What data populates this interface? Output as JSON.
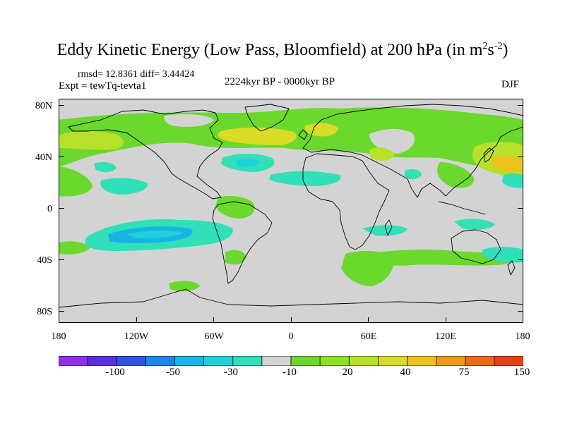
{
  "title": {
    "main": "Eddy Kinetic Energy (Low Pass, Bloomfield) at 200 hPa (in m",
    "sup1": "2",
    "mid": "s",
    "sup2": "-2",
    "end": ")"
  },
  "stats": "rmsd= 12.8361 diff= 3.44424",
  "experiment": "Expt = tewTq-tevta1",
  "period": "2224kyr BP - 0000kyr BP",
  "season": "DJF",
  "axes": {
    "lat_labels": [
      "80N",
      "40N",
      "0",
      "40S",
      "80S"
    ],
    "lat_values": [
      80,
      40,
      0,
      -40,
      -80
    ],
    "lon_labels": [
      "180",
      "120W",
      "60W",
      "0",
      "60E",
      "120E",
      "180"
    ],
    "lon_values": [
      -180,
      -120,
      -60,
      0,
      60,
      120,
      180
    ]
  },
  "colorbar": {
    "colors": [
      "#8f2fe8",
      "#5a30e0",
      "#2f55e0",
      "#1d86e8",
      "#19b4e6",
      "#1fd2d8",
      "#2fe0b8",
      "#d3d3d3",
      "#6ad82c",
      "#8ee02a",
      "#b6e02a",
      "#d8dc26",
      "#ecc21c",
      "#ec9a1c",
      "#ea6a1c",
      "#e4401a"
    ],
    "labels": [
      "-100",
      "-50",
      "-30",
      "-10",
      "20",
      "40",
      "75",
      "150"
    ],
    "label_boundaries": [
      1,
      3,
      5,
      7,
      9,
      11,
      13,
      15
    ]
  },
  "colors": {
    "background": "#d3d3d3",
    "green": "#6ad82c",
    "yellow_green": "#b6e02a",
    "yellow": "#d8dc26",
    "orange": "#ecc21c",
    "cyan": "#2fe0b8",
    "light_blue": "#1fd2d8",
    "blue": "#19b4e6"
  }
}
